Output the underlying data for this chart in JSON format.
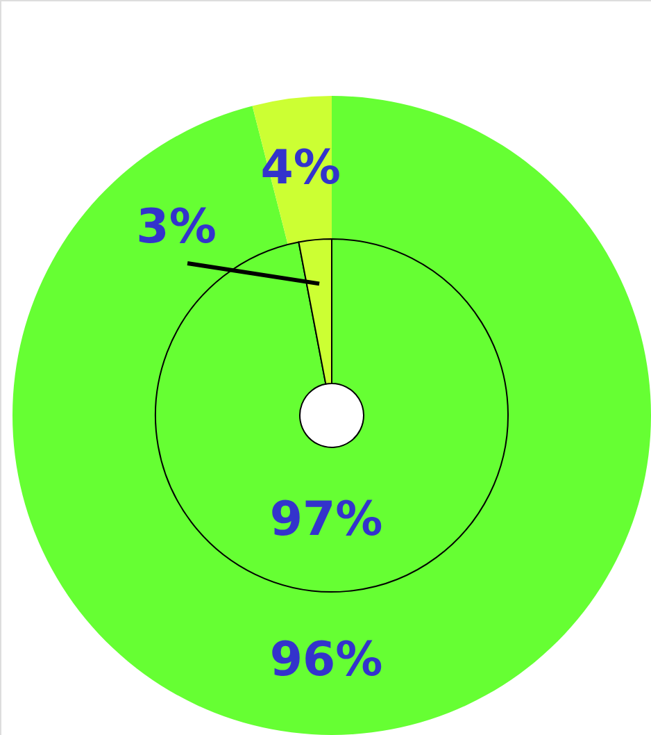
{
  "chart_data": [
    {
      "type": "donut",
      "categories": [
        null,
        null
      ],
      "values": [
        96,
        4
      ],
      "colors": [
        "#66ff33",
        "#ccff33"
      ],
      "value_labels": [
        "96%",
        "4%"
      ]
    },
    {
      "type": "donut",
      "categories": [
        null,
        null
      ],
      "values": [
        97,
        3
      ],
      "colors": [
        "#66ff33",
        "#ccff33"
      ],
      "value_labels": [
        "97%",
        "3%"
      ]
    }
  ]
}
